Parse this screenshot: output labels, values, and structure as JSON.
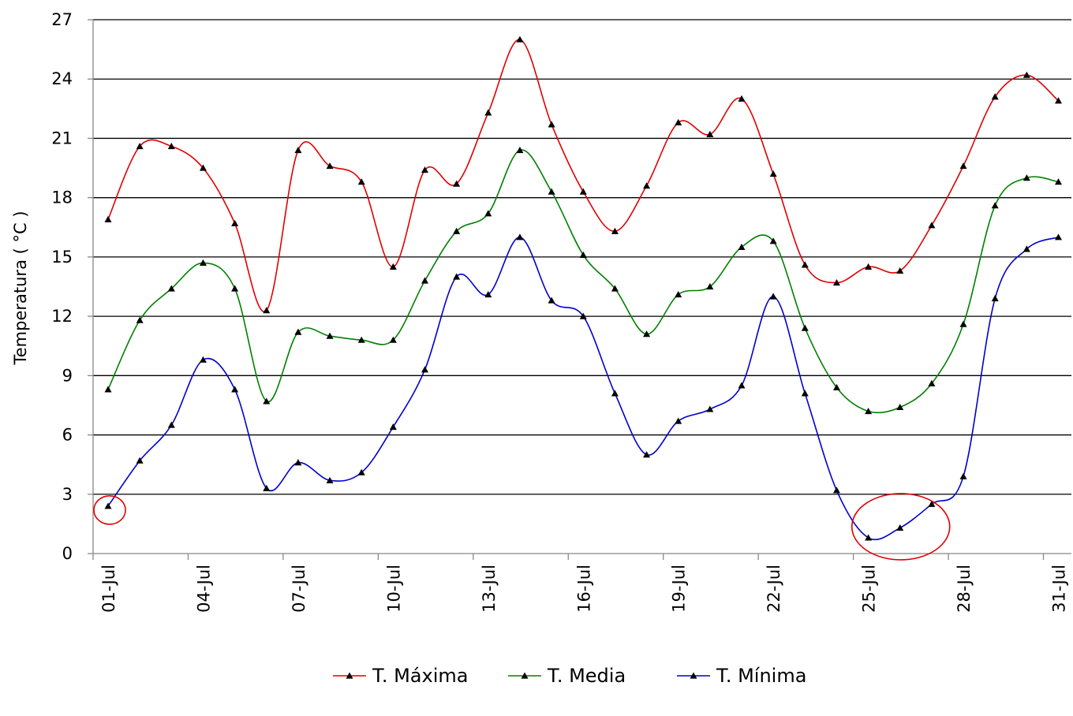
{
  "chart_data": {
    "type": "line",
    "ylabel": "Temperatura ( °C )",
    "ylim": [
      0,
      27
    ],
    "yticks": [
      0,
      3,
      6,
      9,
      12,
      15,
      18,
      21,
      24,
      27
    ],
    "x": [
      "01-Jul",
      "02-Jul",
      "03-Jul",
      "04-Jul",
      "05-Jul",
      "06-Jul",
      "07-Jul",
      "08-Jul",
      "09-Jul",
      "10-Jul",
      "11-Jul",
      "12-Jul",
      "13-Jul",
      "14-Jul",
      "15-Jul",
      "16-Jul",
      "17-Jul",
      "18-Jul",
      "19-Jul",
      "20-Jul",
      "21-Jul",
      "22-Jul",
      "23-Jul",
      "24-Jul",
      "25-Jul",
      "26-Jul",
      "27-Jul",
      "28-Jul",
      "29-Jul",
      "30-Jul",
      "31-Jul"
    ],
    "xtick_labels": [
      "01-Jul",
      "04-Jul",
      "07-Jul",
      "10-Jul",
      "13-Jul",
      "16-Jul",
      "19-Jul",
      "22-Jul",
      "25-Jul",
      "28-Jul",
      "31-Jul"
    ],
    "grid": "horizontal",
    "legend_position": "bottom",
    "series": [
      {
        "name": "T. Máxima",
        "color": "#e00000",
        "values": [
          16.9,
          20.6,
          20.6,
          19.5,
          16.7,
          12.3,
          20.4,
          19.6,
          18.8,
          14.5,
          19.4,
          18.7,
          22.3,
          26.0,
          21.7,
          18.3,
          16.3,
          18.6,
          21.8,
          21.2,
          23.0,
          19.2,
          14.6,
          13.7,
          14.5,
          14.3,
          16.6,
          19.6,
          23.1,
          24.2,
          22.9
        ]
      },
      {
        "name": "T. Media",
        "color": "#008000",
        "values": [
          8.3,
          11.8,
          13.4,
          14.7,
          13.4,
          7.7,
          11.2,
          11.0,
          10.8,
          10.8,
          13.8,
          16.3,
          17.2,
          20.4,
          18.3,
          15.1,
          13.4,
          11.1,
          13.1,
          13.5,
          15.5,
          15.8,
          11.4,
          8.4,
          7.2,
          7.4,
          8.6,
          11.6,
          17.6,
          19.0,
          18.8
        ]
      },
      {
        "name": "T. Mínima",
        "color": "#0000cc",
        "values": [
          2.4,
          4.7,
          6.5,
          9.8,
          8.3,
          3.3,
          4.6,
          3.7,
          4.1,
          6.4,
          9.3,
          14.0,
          13.1,
          16.0,
          12.8,
          12.0,
          8.1,
          5.0,
          6.7,
          7.3,
          8.5,
          13.0,
          8.1,
          3.2,
          0.8,
          1.3,
          2.5,
          3.9,
          12.9,
          15.4,
          16.0
        ]
      }
    ],
    "annotations": [
      {
        "type": "circle",
        "color": "#e00000",
        "x": "01-Jul",
        "y": 2.4
      },
      {
        "type": "circle",
        "color": "#e00000",
        "x": "26-Jul",
        "y": 1.2
      }
    ]
  }
}
